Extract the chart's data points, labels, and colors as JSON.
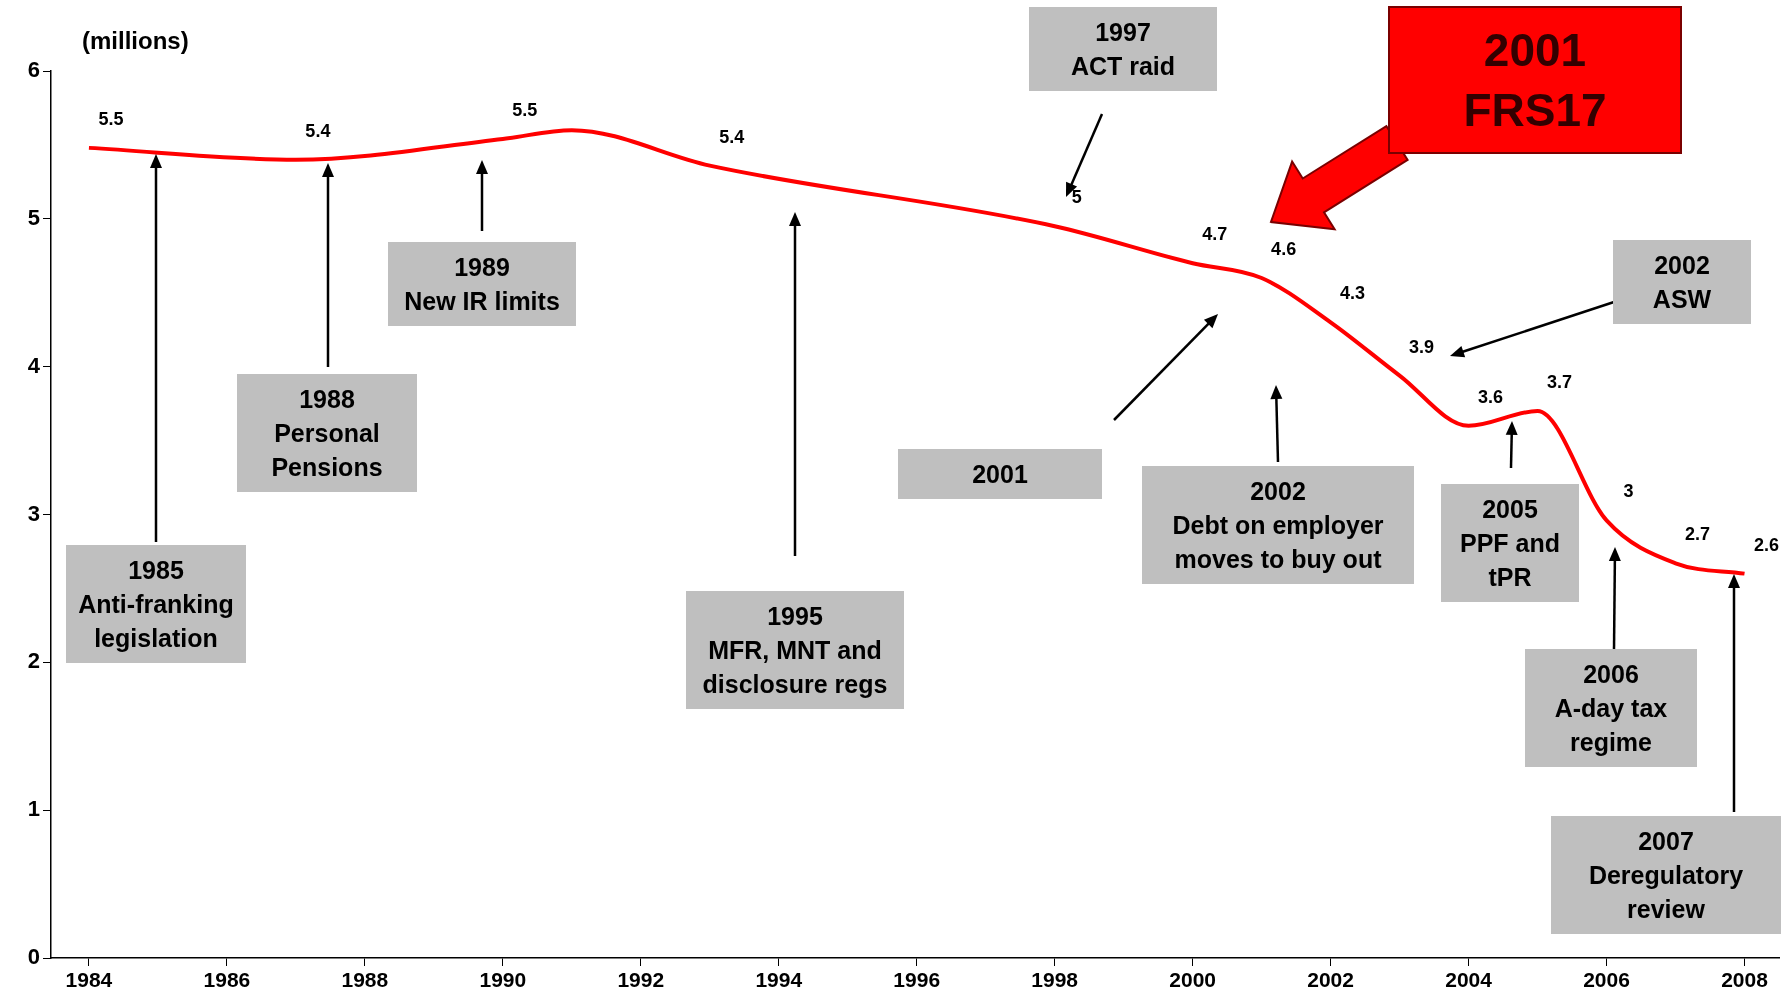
{
  "chart_data": {
    "type": "line",
    "ylabel": "(millions)",
    "x": [
      1984,
      1987,
      1990,
      1991,
      1993,
      1998,
      2000,
      2001,
      2002,
      2003,
      2004,
      2005,
      2006,
      2007,
      2008
    ],
    "series": [
      {
        "color": "#ff0000",
        "values": [
          5.48,
          5.4,
          5.54,
          5.6,
          5.36,
          4.95,
          4.7,
          4.6,
          4.3,
          3.94,
          3.6,
          3.7,
          2.96,
          2.67,
          2.6
        ],
        "value_labels": [
          "5.5",
          "5.4",
          "5.5",
          null,
          "5.4",
          "5",
          "4.7",
          "4.6",
          "4.3",
          "3.9",
          "3.6",
          "3.7",
          "3",
          "2.7",
          "2.6"
        ]
      }
    ],
    "xlim": [
      1983.45,
      2008.5
    ],
    "xticks": [
      1984,
      1986,
      1988,
      1990,
      1992,
      1994,
      1996,
      1998,
      2000,
      2002,
      2004,
      2006,
      2008
    ],
    "ylim": [
      0,
      6
    ],
    "yticks": [
      0,
      1,
      2,
      3,
      4,
      5,
      6
    ],
    "grid": false,
    "legend": false,
    "marker": "none",
    "line_style": "solid",
    "annotations": [
      "1985\nAnti-franking\nlegislation",
      "1988\nPersonal\nPensions",
      "1989\nNew IR limits",
      "1995\nMFR, MNT and\ndisclosure regs",
      "1997\nACT raid",
      "2001\nFRS17",
      "2001",
      "2002\nDebt on employer\nmoves to buy out",
      "2002\nASW",
      "2005\nPPF and\ntPR",
      "2006\nA-day tax\nregime",
      "2007\nDeregulatory\nreview"
    ]
  }
}
